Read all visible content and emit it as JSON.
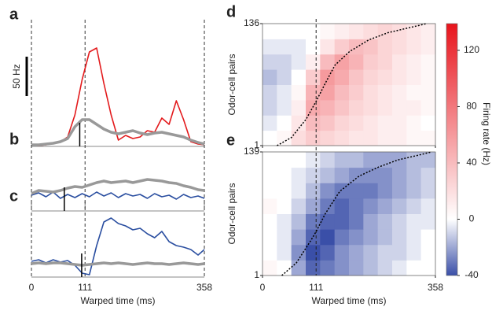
{
  "chart_data": [
    {
      "type": "line",
      "panel": "a",
      "xlim": [
        0,
        358
      ],
      "ylim": [
        0,
        145
      ],
      "xticks": [
        0,
        111,
        358
      ],
      "scalebar": {
        "value": 50,
        "label": "50 Hz"
      },
      "marker_x": 100,
      "x": [
        0,
        15,
        30,
        45,
        60,
        75,
        90,
        105,
        120,
        135,
        150,
        165,
        180,
        195,
        210,
        225,
        240,
        255,
        270,
        285,
        300,
        315,
        330,
        345,
        358
      ],
      "series": [
        {
          "color": "#e31a1c",
          "values": [
            2,
            1,
            2,
            4,
            6,
            12,
            40,
            85,
            120,
            125,
            80,
            40,
            8,
            14,
            10,
            12,
            20,
            18,
            36,
            28,
            58,
            34,
            6,
            3,
            2
          ]
        },
        {
          "color": "#999999",
          "values": [
            2,
            2,
            3,
            4,
            6,
            10,
            25,
            34,
            34,
            28,
            22,
            18,
            16,
            18,
            20,
            17,
            15,
            17,
            18,
            16,
            14,
            12,
            8,
            5,
            3
          ]
        }
      ]
    },
    {
      "type": "line",
      "panel": "b",
      "xlim": [
        0,
        358
      ],
      "ylim": [
        0,
        68
      ],
      "xticks": [
        0,
        111,
        358
      ],
      "marker_x": 68,
      "x": [
        0,
        15,
        30,
        45,
        60,
        75,
        90,
        105,
        120,
        135,
        150,
        165,
        180,
        195,
        210,
        225,
        240,
        255,
        270,
        285,
        300,
        315,
        330,
        345,
        358
      ],
      "series": [
        {
          "color": "#2a4ea0",
          "values": [
            20,
            23,
            18,
            24,
            16,
            21,
            17,
            22,
            18,
            24,
            19,
            23,
            17,
            22,
            19,
            21,
            16,
            22,
            18,
            20,
            15,
            21,
            17,
            19,
            16
          ]
        },
        {
          "color": "#999999",
          "values": [
            22,
            26,
            25,
            24,
            26,
            29,
            31,
            30,
            33,
            36,
            38,
            36,
            37,
            38,
            36,
            38,
            40,
            39,
            38,
            36,
            35,
            32,
            30,
            27,
            26
          ]
        }
      ]
    },
    {
      "type": "line",
      "panel": "c",
      "xlim": [
        0,
        358
      ],
      "ylim": [
        0,
        80
      ],
      "xticks": [
        0,
        111,
        358
      ],
      "marker_x": 104,
      "xlabel": "Warped time (ms)",
      "x": [
        0,
        15,
        30,
        45,
        60,
        75,
        90,
        105,
        120,
        135,
        150,
        165,
        180,
        195,
        210,
        225,
        240,
        255,
        270,
        285,
        300,
        315,
        330,
        345,
        358
      ],
      "series": [
        {
          "color": "#2a4ea0",
          "values": [
            20,
            22,
            18,
            22,
            19,
            21,
            15,
            5,
            3,
            40,
            70,
            75,
            68,
            65,
            60,
            62,
            55,
            50,
            58,
            45,
            40,
            38,
            35,
            28,
            35
          ]
        },
        {
          "color": "#999999",
          "values": [
            17,
            18,
            17,
            18,
            18,
            17,
            16,
            15,
            16,
            17,
            18,
            17,
            18,
            17,
            16,
            17,
            18,
            17,
            17,
            16,
            17,
            18,
            17,
            16,
            17
          ]
        }
      ]
    },
    {
      "type": "heatmap",
      "panel": "d",
      "ylabel": "Odor-cell pairs",
      "xlim": [
        0,
        358
      ],
      "ylim": [
        1,
        136
      ],
      "xticks": [
        0,
        111,
        358
      ],
      "yticks": [
        1,
        136
      ],
      "z": [
        [
          0,
          5,
          20,
          30,
          25,
          20,
          15,
          15,
          10,
          10,
          5,
          5
        ],
        [
          -5,
          0,
          15,
          40,
          35,
          25,
          20,
          15,
          10,
          10,
          5,
          0
        ],
        [
          -10,
          -5,
          10,
          50,
          45,
          35,
          25,
          20,
          15,
          10,
          10,
          5
        ],
        [
          -10,
          -5,
          5,
          45,
          55,
          40,
          30,
          20,
          15,
          10,
          5,
          5
        ],
        [
          -15,
          -10,
          0,
          30,
          60,
          50,
          35,
          25,
          20,
          15,
          10,
          5
        ],
        [
          -10,
          -10,
          -5,
          10,
          40,
          55,
          45,
          30,
          25,
          15,
          10,
          5
        ],
        [
          -5,
          -5,
          -5,
          0,
          15,
          30,
          40,
          35,
          25,
          20,
          15,
          10
        ],
        [
          0,
          0,
          0,
          0,
          5,
          10,
          15,
          20,
          25,
          20,
          15,
          10
        ]
      ],
      "onset": {
        "x": [
          30,
          60,
          90,
          111,
          130,
          150,
          180,
          220,
          260,
          300,
          340
        ],
        "y": [
          1,
          10,
          30,
          50,
          70,
          90,
          105,
          118,
          126,
          131,
          136
        ]
      },
      "colorbar": {
        "label": "Firing rate (Hz)",
        "clim": [
          -40,
          139
        ],
        "cticks": [
          -40,
          0,
          40,
          80,
          120
        ],
        "colors": [
          "#3a4fa8",
          "#ffffff",
          "#e8141c"
        ]
      }
    },
    {
      "type": "heatmap",
      "panel": "e",
      "ylabel": "Odor-cell pairs",
      "xlabel": "Warped time (ms)",
      "xlim": [
        0,
        358
      ],
      "ylim": [
        1,
        139
      ],
      "xticks": [
        0,
        111,
        358
      ],
      "yticks": [
        1,
        139
      ],
      "z": [
        [
          5,
          0,
          -20,
          -35,
          -30,
          -25,
          -20,
          -15,
          -10,
          -5,
          0,
          0
        ],
        [
          0,
          -5,
          -25,
          -40,
          -35,
          -25,
          -20,
          -15,
          -10,
          -10,
          -5,
          0
        ],
        [
          0,
          -5,
          -20,
          -35,
          -40,
          -30,
          -25,
          -20,
          -15,
          -10,
          -5,
          0
        ],
        [
          0,
          -5,
          -15,
          -30,
          -35,
          -35,
          -30,
          -20,
          -15,
          -10,
          -5,
          -5
        ],
        [
          5,
          0,
          -10,
          -20,
          -30,
          -35,
          -30,
          -25,
          -20,
          -15,
          -10,
          -5
        ],
        [
          0,
          0,
          -5,
          -15,
          -25,
          -30,
          -30,
          -30,
          -25,
          -20,
          -15,
          -10
        ],
        [
          0,
          0,
          -5,
          -10,
          -15,
          -20,
          -25,
          -25,
          -25,
          -20,
          -15,
          -10
        ],
        [
          0,
          0,
          0,
          -5,
          -10,
          -15,
          -15,
          -20,
          -20,
          -20,
          -15,
          -15
        ]
      ],
      "onset": {
        "x": [
          40,
          70,
          100,
          111,
          130,
          160,
          200,
          240,
          280,
          320,
          350
        ],
        "y": [
          1,
          15,
          40,
          50,
          70,
          95,
          112,
          122,
          130,
          135,
          139
        ]
      }
    }
  ]
}
